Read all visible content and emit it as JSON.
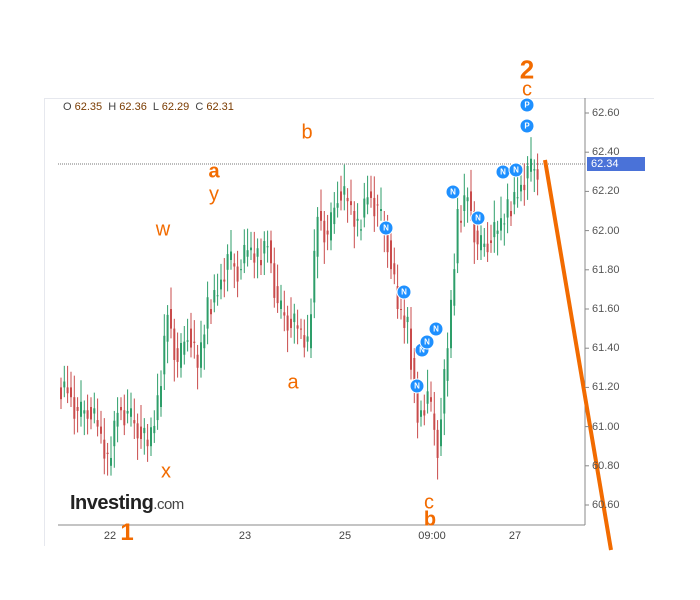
{
  "chart_data": {
    "type": "candlestick",
    "ohlc": {
      "O": "62.35",
      "H": "62.36",
      "L": "62.29",
      "C": "62.31"
    },
    "ylim": [
      60.5,
      62.68
    ],
    "y_ticks": [
      "62.60",
      "62.40",
      "62.20",
      "62.00",
      "61.80",
      "61.60",
      "61.40",
      "61.20",
      "61.00",
      "60.80",
      "60.60"
    ],
    "x_ticks": [
      "22",
      "23",
      "25",
      "09:00",
      "27"
    ],
    "last_price": "62.34",
    "closes": [
      61.2,
      61.05,
      61.1,
      61.0,
      60.8,
      61.1,
      61.05,
      61.0,
      60.9,
      61.1,
      61.6,
      61.3,
      61.5,
      61.3,
      61.6,
      61.7,
      61.85,
      61.8,
      61.9,
      61.85,
      61.95,
      61.6,
      61.55,
      61.5,
      61.4,
      62.1,
      61.95,
      62.2,
      62.15,
      62.0,
      62.2,
      62.1,
      61.95,
      61.6,
      61.5,
      61.05,
      61.15,
      60.9,
      61.4,
      62.05,
      62.2,
      61.9,
      61.95,
      62.0,
      62.1,
      62.2,
      62.3,
      62.32
    ],
    "colors": {
      "up": "#2e9e6a",
      "down": "#c94b4b",
      "wave_labels": "#f26b00",
      "markers": "#1e90ff",
      "price_label": "#4a72d8"
    },
    "wave_labels": [
      "w",
      "a",
      "y",
      "x",
      "b",
      "a",
      "c",
      "b",
      "2",
      "c",
      "1"
    ],
    "markers": [
      "N",
      "N",
      "N",
      "N",
      "N",
      "N",
      "N",
      "N",
      "N",
      "N",
      "P",
      "P"
    ],
    "logo": {
      "main": "Investing",
      "suffix": ".com"
    }
  }
}
